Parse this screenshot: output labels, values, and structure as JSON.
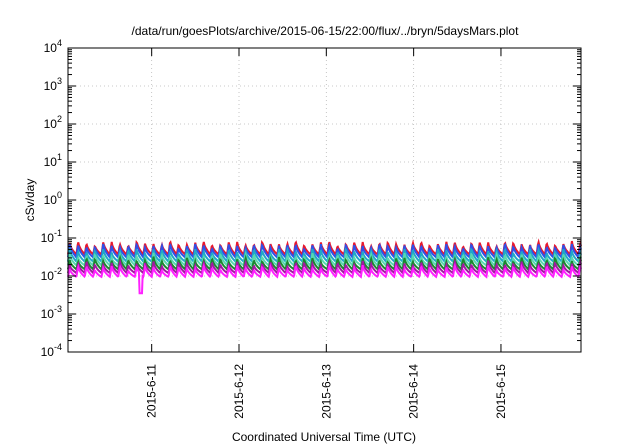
{
  "chart_data": {
    "type": "line",
    "title": "/data/run/goesPlots/archive/2015-06-15/22:00/flux/../bryn/5daysMars.plot",
    "xlabel": "Coordinated Universal Time (UTC)",
    "ylabel": "cSv/day",
    "yscale": "log",
    "ylim": [
      0.0001,
      10000
    ],
    "xlim": [
      "2015-06-10 01:00",
      "2015-06-15 22:00"
    ],
    "grid": true,
    "x_ticks": [
      "2015-6-11",
      "2015-6-12",
      "2015-6-13",
      "2015-6-14",
      "2015-6-15"
    ],
    "y_ticks": [
      {
        "base": "10",
        "exp": "4"
      },
      {
        "base": "10",
        "exp": "3"
      },
      {
        "base": "10",
        "exp": "2"
      },
      {
        "base": "10",
        "exp": "1"
      },
      {
        "base": "10",
        "exp": "0"
      },
      {
        "base": "10",
        "exp": "-1"
      },
      {
        "base": "10",
        "exp": "-2"
      },
      {
        "base": "10",
        "exp": "-3"
      },
      {
        "base": "10",
        "exp": "-4"
      }
    ],
    "cycle_hours": 2.3,
    "series": [
      {
        "color": "#e8182e",
        "peak": 0.075,
        "trough": 0.037
      },
      {
        "color": "#3050e8",
        "peak": 0.065,
        "trough": 0.031
      },
      {
        "color": "#20a8c8",
        "peak": 0.048,
        "trough": 0.024
      },
      {
        "color": "#58d8b0",
        "peak": 0.036,
        "trough": 0.019
      },
      {
        "color": "#1a8830",
        "peak": 0.028,
        "trough": 0.015
      },
      {
        "color": "#a01aa0",
        "peak": 0.022,
        "trough": 0.012
      },
      {
        "color": "#ff20ff",
        "peak": 0.017,
        "trough": 0.0095
      }
    ],
    "outlier": {
      "x": "2015-06-10 21:00",
      "series_index": 6,
      "value": 0.0035
    }
  }
}
